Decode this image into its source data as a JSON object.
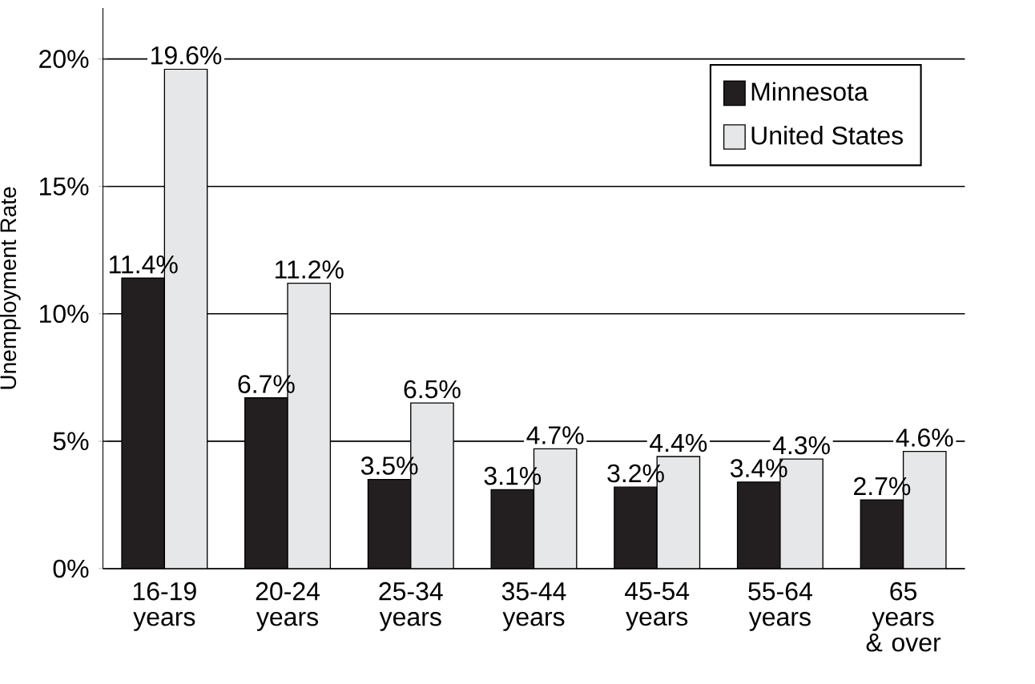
{
  "chart_data": {
    "type": "bar",
    "ylabel": "Unemployment Rate",
    "categories": [
      "16-19 years",
      "20-24 years",
      "25-34 years",
      "35-44 years",
      "45-54 years",
      "55-64 years",
      "65 years & over"
    ],
    "series": [
      {
        "name": "Minnesota",
        "color": "#231f20",
        "values": [
          11.4,
          6.7,
          3.5,
          3.1,
          3.2,
          3.4,
          2.7
        ],
        "value_labels": [
          "11.4%",
          "6.7%",
          "3.5%",
          "3.1%",
          "3.2%",
          "3.4%",
          "2.7%"
        ]
      },
      {
        "name": "United States",
        "color": "#e6e7e8",
        "values": [
          19.6,
          11.2,
          6.5,
          4.7,
          4.4,
          4.3,
          4.6
        ],
        "value_labels": [
          "19.6%",
          "11.2%",
          "6.5%",
          "4.7%",
          "4.4%",
          "4.3%",
          "4.6%"
        ]
      }
    ],
    "ylim": [
      0,
      22
    ],
    "yticks": [
      {
        "value": 0,
        "label": "0%"
      },
      {
        "value": 5,
        "label": "5%"
      },
      {
        "value": 10,
        "label": "10%"
      },
      {
        "value": 15,
        "label": "15%"
      },
      {
        "value": 20,
        "label": "20%"
      }
    ],
    "grid": "y",
    "legend": "top right"
  }
}
